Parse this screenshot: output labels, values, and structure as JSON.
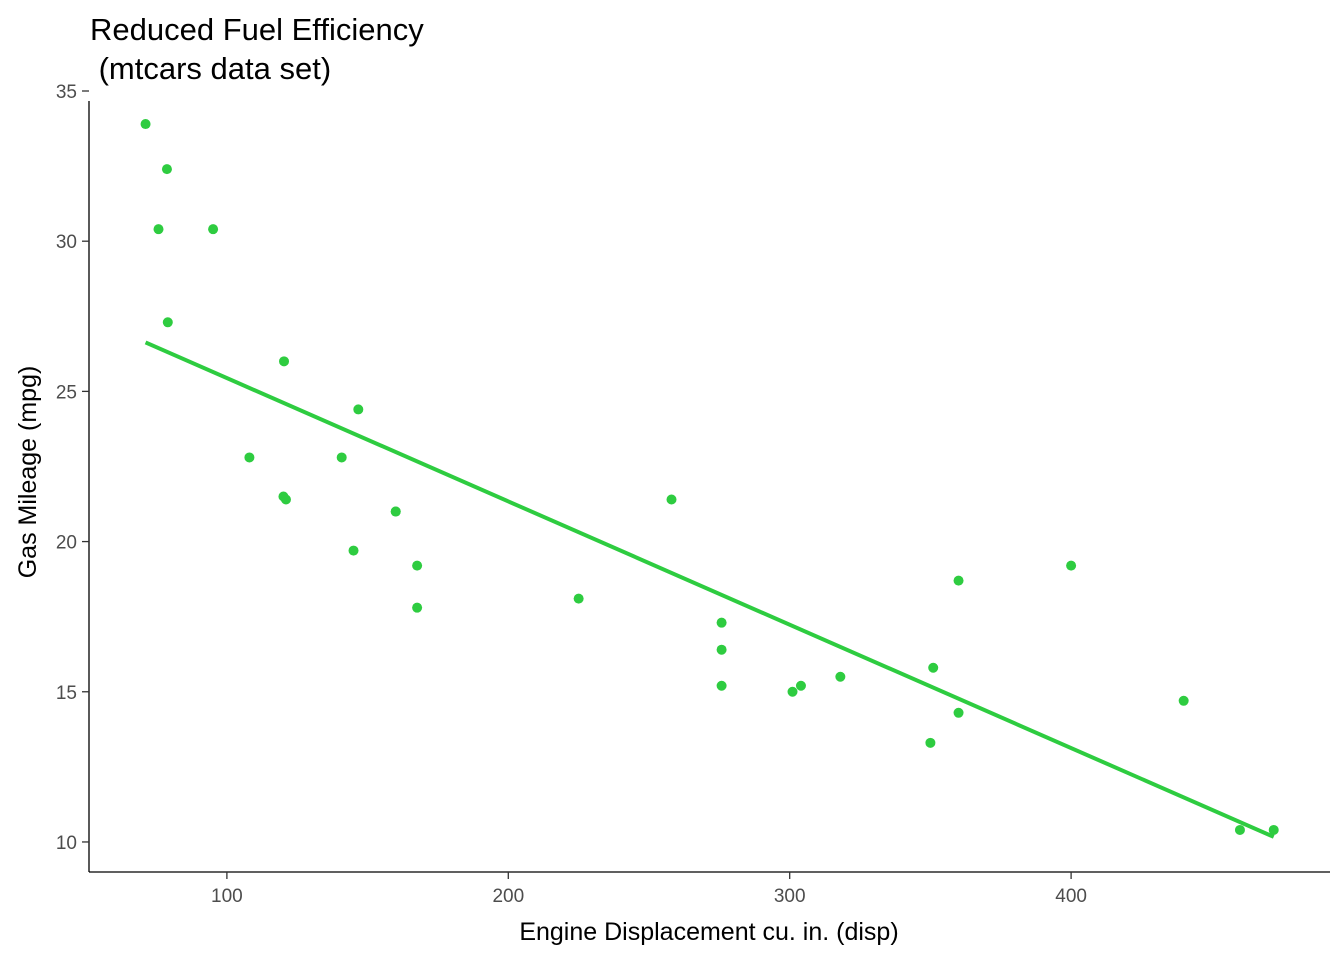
{
  "chart_data": {
    "type": "scatter",
    "title_lines": [
      "Reduced Fuel Efficiency",
      " (mtcars data set)"
    ],
    "xlabel": "Engine Displacement cu. in. (disp)",
    "ylabel": "Gas Mileage (mpg)",
    "xlim": [
      51,
      492
    ],
    "ylim": [
      9,
      35
    ],
    "x_ticks": [
      100,
      200,
      300,
      400
    ],
    "y_ticks": [
      10,
      15,
      20,
      25,
      30,
      35
    ],
    "grid": false,
    "colors": {
      "points": "#2ecc40",
      "fit_line": "#2ecc40"
    },
    "points": [
      {
        "x": 160.0,
        "y": 21.0
      },
      {
        "x": 160.0,
        "y": 21.0
      },
      {
        "x": 108.0,
        "y": 22.8
      },
      {
        "x": 258.0,
        "y": 21.4
      },
      {
        "x": 360.0,
        "y": 18.7
      },
      {
        "x": 225.0,
        "y": 18.1
      },
      {
        "x": 360.0,
        "y": 14.3
      },
      {
        "x": 146.7,
        "y": 24.4
      },
      {
        "x": 140.8,
        "y": 22.8
      },
      {
        "x": 167.6,
        "y": 19.2
      },
      {
        "x": 167.6,
        "y": 17.8
      },
      {
        "x": 275.8,
        "y": 16.4
      },
      {
        "x": 275.8,
        "y": 17.3
      },
      {
        "x": 275.8,
        "y": 15.2
      },
      {
        "x": 472.0,
        "y": 10.4
      },
      {
        "x": 460.0,
        "y": 10.4
      },
      {
        "x": 440.0,
        "y": 14.7
      },
      {
        "x": 78.7,
        "y": 32.4
      },
      {
        "x": 75.7,
        "y": 30.4
      },
      {
        "x": 71.1,
        "y": 33.9
      },
      {
        "x": 120.1,
        "y": 21.5
      },
      {
        "x": 318.0,
        "y": 15.5
      },
      {
        "x": 304.0,
        "y": 15.2
      },
      {
        "x": 350.0,
        "y": 13.3
      },
      {
        "x": 400.0,
        "y": 19.2
      },
      {
        "x": 79.0,
        "y": 27.3
      },
      {
        "x": 120.3,
        "y": 26.0
      },
      {
        "x": 95.1,
        "y": 30.4
      },
      {
        "x": 351.0,
        "y": 15.8
      },
      {
        "x": 145.0,
        "y": 19.7
      },
      {
        "x": 301.0,
        "y": 15.0
      },
      {
        "x": 121.0,
        "y": 21.4
      }
    ],
    "fit_line": {
      "x": [
        71.1,
        472.0
      ],
      "y": [
        26.63,
        10.17
      ]
    }
  }
}
